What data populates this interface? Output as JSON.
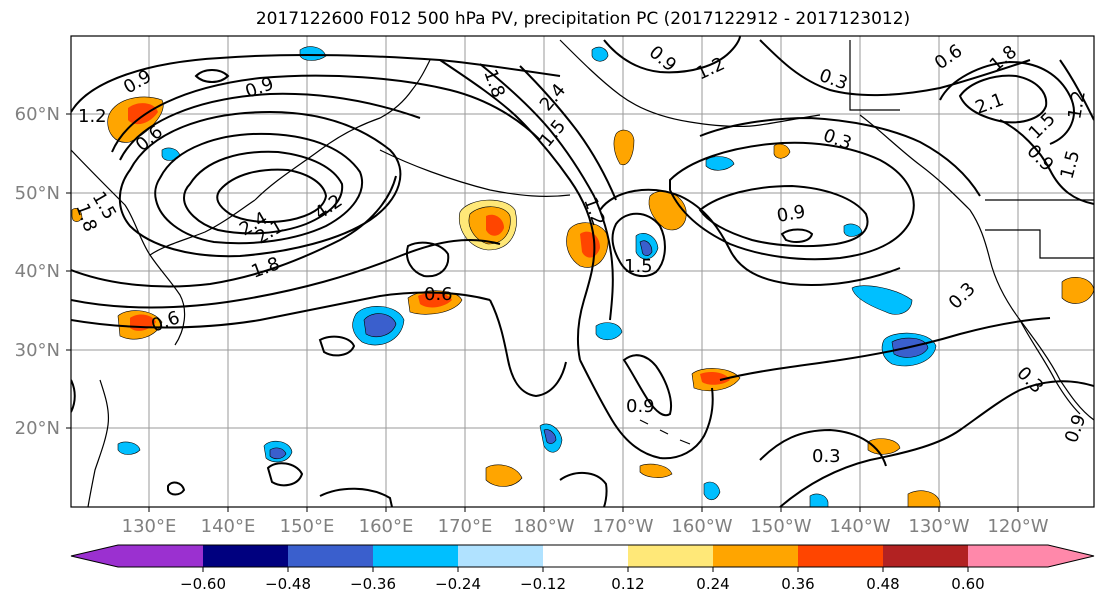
{
  "title": "2017122600 F012 500 hPa PV, precipitation PC (2017122912 - 2017123012)",
  "map": {
    "lon_labels": [
      "130°E",
      "140°E",
      "150°E",
      "160°E",
      "170°E",
      "180°W",
      "170°W",
      "160°W",
      "150°W",
      "140°W",
      "130°W",
      "120°W"
    ],
    "lat_labels": [
      "60°N",
      "50°N",
      "40°N",
      "30°N",
      "20°N"
    ],
    "contour_labels": [
      "0.9",
      "0.9",
      "1.2",
      "0.6",
      "1.5",
      "1.8",
      "2.1",
      "4.2",
      "2.4",
      "1.8",
      "0.6",
      "0.6",
      "1.8",
      "0.9",
      "2.4",
      "1.5",
      "1.2",
      "1.5",
      "0.9",
      "1.2",
      "0.3",
      "0.3",
      "0.9",
      "0.3",
      "0.6",
      "1.8",
      "2.1",
      "1.5",
      "0.9",
      "1.5",
      "1.2",
      "0.3",
      "0.3",
      "0.9"
    ]
  },
  "colorbar": {
    "ticks": [
      "−0.60",
      "−0.48",
      "−0.36",
      "−0.24",
      "−0.12",
      "0.12",
      "0.24",
      "0.36",
      "0.48",
      "0.60"
    ],
    "colors": [
      "#9b30d0",
      "#00007f",
      "#3a5fcd",
      "#00bfff",
      "#b0e2ff",
      "#ffffff",
      "#ffe878",
      "#ffa500",
      "#ff4500",
      "#b22222",
      "#ff88aa"
    ]
  }
}
